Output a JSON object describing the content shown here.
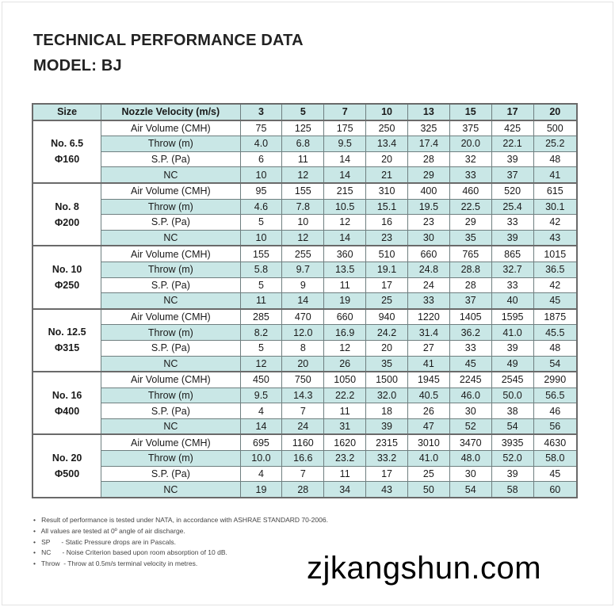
{
  "title": "TECHNICAL PERFORMANCE DATA",
  "model": "MODEL: BJ",
  "table": {
    "headers": [
      "Size",
      "Nozzle Velocity (m/s)",
      "3",
      "5",
      "7",
      "10",
      "13",
      "15",
      "17",
      "20"
    ],
    "row_labels": [
      "Air Volume (CMH)",
      "Throw (m)",
      "S.P. (Pa)",
      "NC"
    ],
    "colors": {
      "header_fill": "#c9e7e6",
      "alt_row_fill": "#c9e7e6",
      "border": "#6a6a6a"
    },
    "groups": [
      {
        "size": "No. 6.5",
        "diameter": "Φ160",
        "rows": [
          [
            "75",
            "125",
            "175",
            "250",
            "325",
            "375",
            "425",
            "500"
          ],
          [
            "4.0",
            "6.8",
            "9.5",
            "13.4",
            "17.4",
            "20.0",
            "22.1",
            "25.2"
          ],
          [
            "6",
            "11",
            "14",
            "20",
            "28",
            "32",
            "39",
            "48"
          ],
          [
            "10",
            "12",
            "14",
            "21",
            "29",
            "33",
            "37",
            "41"
          ]
        ]
      },
      {
        "size": "No. 8",
        "diameter": "Φ200",
        "rows": [
          [
            "95",
            "155",
            "215",
            "310",
            "400",
            "460",
            "520",
            "615"
          ],
          [
            "4.6",
            "7.8",
            "10.5",
            "15.1",
            "19.5",
            "22.5",
            "25.4",
            "30.1"
          ],
          [
            "5",
            "10",
            "12",
            "16",
            "23",
            "29",
            "33",
            "42"
          ],
          [
            "10",
            "12",
            "14",
            "23",
            "30",
            "35",
            "39",
            "43"
          ]
        ]
      },
      {
        "size": "No. 10",
        "diameter": "Φ250",
        "rows": [
          [
            "155",
            "255",
            "360",
            "510",
            "660",
            "765",
            "865",
            "1015"
          ],
          [
            "5.8",
            "9.7",
            "13.5",
            "19.1",
            "24.8",
            "28.8",
            "32.7",
            "36.5"
          ],
          [
            "5",
            "9",
            "11",
            "17",
            "24",
            "28",
            "33",
            "42"
          ],
          [
            "11",
            "14",
            "19",
            "25",
            "33",
            "37",
            "40",
            "45"
          ]
        ]
      },
      {
        "size": "No. 12.5",
        "diameter": "Φ315",
        "rows": [
          [
            "285",
            "470",
            "660",
            "940",
            "1220",
            "1405",
            "1595",
            "1875"
          ],
          [
            "8.2",
            "12.0",
            "16.9",
            "24.2",
            "31.4",
            "36.2",
            "41.0",
            "45.5"
          ],
          [
            "5",
            "8",
            "12",
            "20",
            "27",
            "33",
            "39",
            "48"
          ],
          [
            "12",
            "20",
            "26",
            "35",
            "41",
            "45",
            "49",
            "54"
          ]
        ]
      },
      {
        "size": "No. 16",
        "diameter": "Φ400",
        "rows": [
          [
            "450",
            "750",
            "1050",
            "1500",
            "1945",
            "2245",
            "2545",
            "2990"
          ],
          [
            "9.5",
            "14.3",
            "22.2",
            "32.0",
            "40.5",
            "46.0",
            "50.0",
            "56.5"
          ],
          [
            "4",
            "7",
            "11",
            "18",
            "26",
            "30",
            "38",
            "46"
          ],
          [
            "14",
            "24",
            "31",
            "39",
            "47",
            "52",
            "54",
            "56"
          ]
        ]
      },
      {
        "size": "No. 20",
        "diameter": "Φ500",
        "rows": [
          [
            "695",
            "1160",
            "1620",
            "2315",
            "3010",
            "3470",
            "3935",
            "4630"
          ],
          [
            "10.0",
            "16.6",
            "23.2",
            "33.2",
            "41.0",
            "48.0",
            "52.0",
            "58.0"
          ],
          [
            "4",
            "7",
            "11",
            "17",
            "25",
            "30",
            "39",
            "45"
          ],
          [
            "19",
            "28",
            "34",
            "43",
            "50",
            "54",
            "58",
            "60"
          ]
        ]
      }
    ]
  },
  "notes": [
    "Result of performance is tested under NATA, in accordance with ASHRAE STANDARD 70-2006.",
    "All values are tested at 0º angle of air discharge.",
    "SP      - Static Pressure drops are in Pascals.",
    "NC      - Noise Criterion based upon room absorption of 10 dB.",
    "Throw  - Throw at 0.5m/s terminal velocity in metres."
  ],
  "watermark": "zjkangshun.com"
}
